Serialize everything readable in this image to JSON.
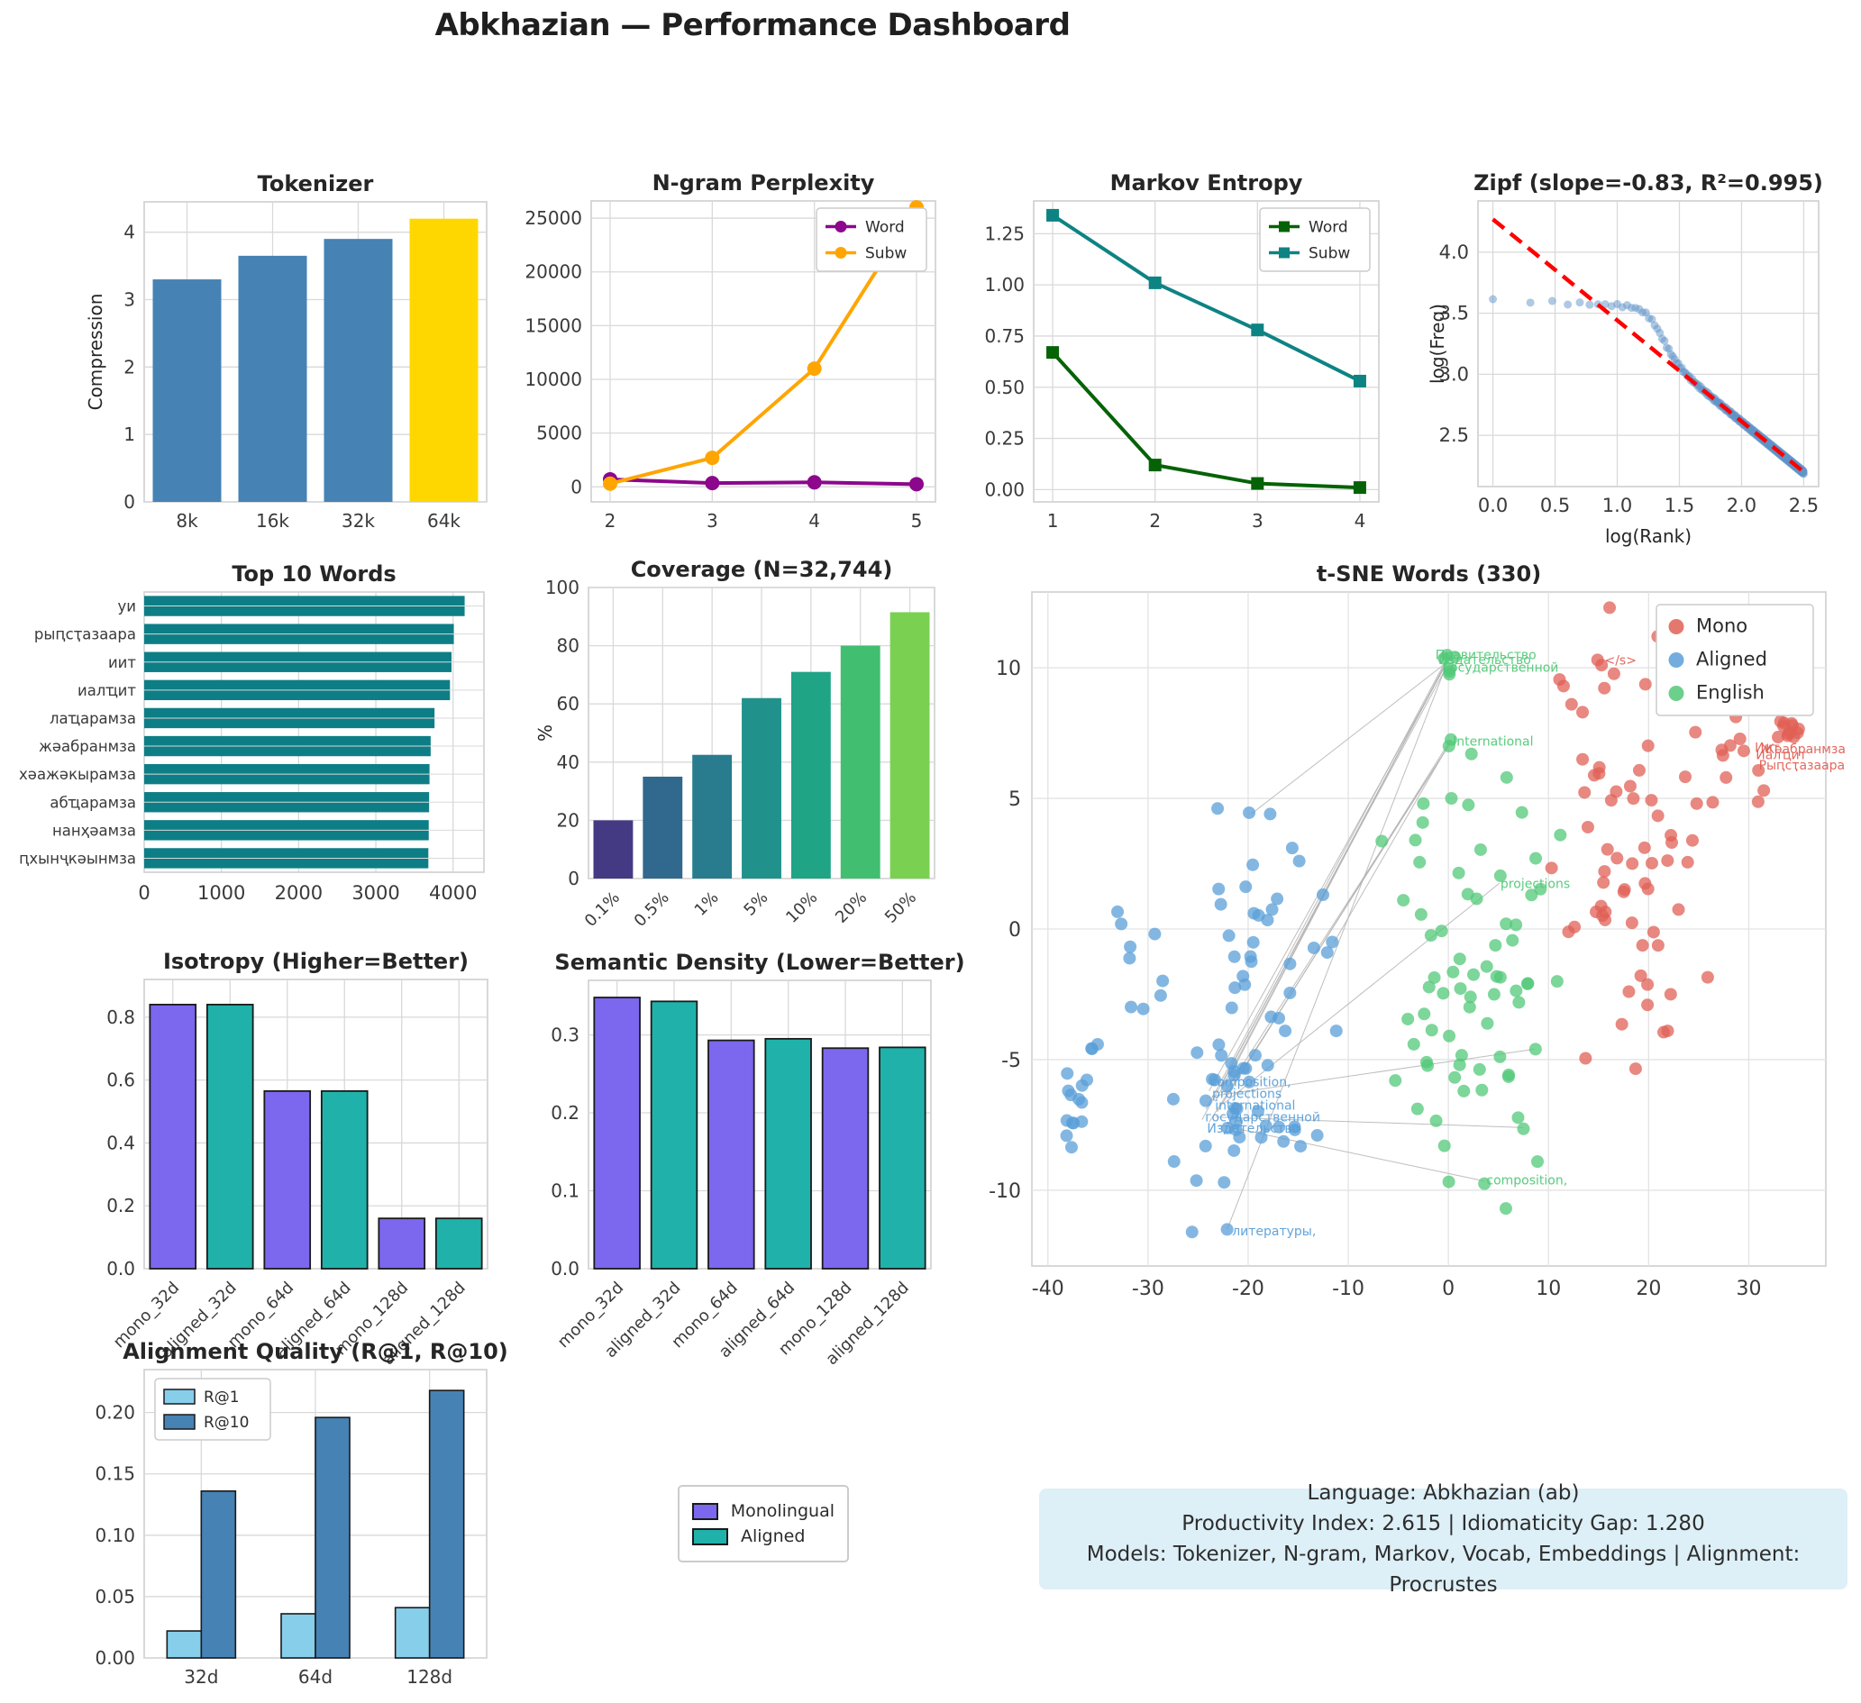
{
  "title": "Abkhazian — Performance Dashboard",
  "chart_data": [
    {
      "id": "tokenizer",
      "type": "bar",
      "title": "Tokenizer",
      "ylabel": "Compression",
      "categories": [
        "8k",
        "16k",
        "32k",
        "64k"
      ],
      "values": [
        3.3,
        3.65,
        3.9,
        4.2
      ],
      "bar_colors": [
        "#4682B4",
        "#4682B4",
        "#4682B4",
        "#FFD700"
      ],
      "ylim": [
        0,
        4.45
      ],
      "yticks": [
        0,
        1,
        2,
        3,
        4
      ],
      "yticklabels": [
        "0",
        "1",
        "2",
        "3",
        "4"
      ]
    },
    {
      "id": "ngram",
      "type": "line",
      "title": "N-gram Perplexity",
      "x": [
        2,
        3,
        4,
        5
      ],
      "xticklabels": [
        "2",
        "3",
        "4",
        "5"
      ],
      "series": [
        {
          "name": "Word",
          "color": "#8C078C",
          "marker": "circle",
          "values": [
            700,
            350,
            420,
            250
          ]
        },
        {
          "name": "Subw",
          "color": "#FFA500",
          "marker": "circle",
          "values": [
            300,
            2700,
            11000,
            26000
          ]
        }
      ],
      "ylim": [
        -1400,
        26600
      ],
      "yticks": [
        0,
        5000,
        10000,
        15000,
        20000,
        25000
      ],
      "yticklabels": [
        "0",
        "5000",
        "10000",
        "15000",
        "20000",
        "25000"
      ],
      "legend_pos": "top-right"
    },
    {
      "id": "markov",
      "type": "line",
      "title": "Markov Entropy",
      "x": [
        1,
        2,
        3,
        4
      ],
      "xticklabels": [
        "1",
        "2",
        "3",
        "4"
      ],
      "series": [
        {
          "name": "Word",
          "color": "#066206",
          "marker": "square",
          "values": [
            0.67,
            0.12,
            0.03,
            0.01
          ]
        },
        {
          "name": "Subw",
          "color": "#0E8383",
          "marker": "square",
          "values": [
            1.34,
            1.01,
            0.78,
            0.53
          ]
        }
      ],
      "ylim": [
        -0.06,
        1.41
      ],
      "yticks": [
        0,
        0.25,
        0.5,
        0.75,
        1.0,
        1.25
      ],
      "yticklabels": [
        "0.00",
        "0.25",
        "0.50",
        "0.75",
        "1.00",
        "1.25"
      ],
      "legend_pos": "top-right"
    },
    {
      "id": "zipf",
      "type": "zipf",
      "title": "Zipf (slope=-0.83, R²=0.995)",
      "xlabel": "log(Rank)",
      "ylabel": "log(Freq)",
      "xlim": [
        -0.12,
        2.62
      ],
      "ylim": [
        2.08,
        4.42
      ],
      "xticks": [
        0,
        0.5,
        1,
        1.5,
        2,
        2.5
      ],
      "xticklabels": [
        "0.0",
        "0.5",
        "1.0",
        "1.5",
        "2.0",
        "2.5"
      ],
      "yticks": [
        2.5,
        3.0,
        3.5,
        4.0
      ],
      "yticklabels": [
        "2.5",
        "3.0",
        "3.5",
        "4.0"
      ],
      "fit_line": {
        "x1": 0,
        "y1": 4.27,
        "x2": 2.5,
        "y2": 2.2,
        "color": "#FF0000"
      },
      "scatter_color": "#5F94C8",
      "n_points": 316,
      "plateau": 3.61,
      "slope": -0.83,
      "intercept": 4.27
    },
    {
      "id": "top10",
      "type": "hbar",
      "title": "Top 10 Words",
      "categories": [
        "уи",
        "рыԥсҭазаара",
        "иит",
        "иалҵит",
        "лаҵарамза",
        "жәабранмза",
        "хәажәкырамза",
        "абҵарамза",
        "нанҳәамза",
        "ԥхынҷкәынмза"
      ],
      "values": [
        4150,
        4010,
        3980,
        3960,
        3760,
        3710,
        3695,
        3690,
        3685,
        3680
      ],
      "bar_color": "#0D7E86",
      "xlim": [
        0,
        4400
      ],
      "xticks": [
        0,
        1000,
        2000,
        3000,
        4000
      ],
      "xticklabels": [
        "0",
        "1000",
        "2000",
        "3000",
        "4000"
      ]
    },
    {
      "id": "coverage",
      "type": "bar",
      "title": "Coverage (N=32,744)",
      "ylabel": "%",
      "categories": [
        "0.1%",
        "0.5%",
        "1%",
        "5%",
        "10%",
        "20%",
        "50%"
      ],
      "values": [
        20,
        35,
        42.5,
        62,
        71,
        80,
        91.5
      ],
      "bar_colors": [
        "#443983",
        "#31688E",
        "#287C8E",
        "#21918C",
        "#20A486",
        "#42BE71",
        "#7AD151"
      ],
      "ylim": [
        0,
        100
      ],
      "yticks": [
        0,
        20,
        40,
        60,
        80,
        100
      ],
      "yticklabels": [
        "0",
        "20",
        "40",
        "60",
        "80",
        "100"
      ],
      "rotate_xticks": 45
    },
    {
      "id": "tsne",
      "type": "tsne",
      "title": "t-SNE Words (330)",
      "xlim": [
        -41.6,
        37.7
      ],
      "ylim": [
        -12.9,
        12.9
      ],
      "xticks": [
        -40,
        -30,
        -20,
        -10,
        0,
        10,
        20,
        30
      ],
      "xticklabels": [
        "-40",
        "-30",
        "-20",
        "-10",
        "0",
        "10",
        "20",
        "30"
      ],
      "yticks": [
        -10,
        -5,
        0,
        5,
        10
      ],
      "yticklabels": [
        "-10",
        "-5",
        "0",
        "5",
        "10"
      ],
      "groups": {
        "mono": "#E06055",
        "aligned": "#5A9FD8",
        "english": "#52C878"
      },
      "legend": [
        {
          "label": "Mono",
          "group": "mono"
        },
        {
          "label": "Aligned",
          "group": "aligned"
        },
        {
          "label": "English",
          "group": "english"
        }
      ],
      "clusters": [
        {
          "g": "aligned",
          "cx": -37.2,
          "cy": -6.7,
          "sx": 0.8,
          "sy": 0.75,
          "n": 13
        },
        {
          "g": "aligned",
          "cx": -35.3,
          "cy": -4.55,
          "sx": 0.4,
          "sy": 0.15,
          "n": 3
        },
        {
          "g": "aligned",
          "cx": -30.6,
          "cy": -1.6,
          "sx": 1.6,
          "sy": 1.0,
          "n": 9
        },
        {
          "g": "aligned",
          "cx": -19.3,
          "cy": -0.6,
          "sx": 2.9,
          "sy": 2.3,
          "n": 26
        },
        {
          "g": "aligned",
          "cx": -21.8,
          "cy": -6.5,
          "sx": 2.4,
          "sy": 1.1,
          "n": 26
        },
        {
          "g": "aligned",
          "cx": -17.3,
          "cy": -8.0,
          "sx": 2.0,
          "sy": 0.8,
          "n": 7
        },
        {
          "g": "english",
          "cx": -0.35,
          "cy": 10.15,
          "sx": 0.45,
          "sy": 0.22,
          "n": 5
        },
        {
          "g": "english",
          "cx": 1.9,
          "cy": -2.3,
          "sx": 3.2,
          "sy": 3.3,
          "n": 60
        },
        {
          "g": "mono",
          "cx": 17.6,
          "cy": 2.7,
          "sx": 3.2,
          "sy": 3.1,
          "n": 52
        },
        {
          "g": "mono",
          "cx": 28.4,
          "cy": 6.7,
          "sx": 1.5,
          "sy": 1.1,
          "n": 10
        },
        {
          "g": "mono",
          "cx": 33.8,
          "cy": 7.6,
          "sx": 0.85,
          "sy": 0.5,
          "n": 12
        }
      ],
      "extra_points": {
        "aligned": [
          [
            -25.6,
            -11.6
          ],
          [
            -22.1,
            -11.5
          ],
          [
            -22.4,
            -9.7
          ],
          [
            -27.4,
            -8.9
          ],
          [
            -13.1,
            -7.9
          ],
          [
            -11.2,
            -3.9
          ],
          [
            -12.1,
            -0.9
          ],
          [
            -11.6,
            -0.5
          ],
          [
            -16.3,
            -3.9
          ],
          [
            -19.9,
            4.45
          ],
          [
            -17.8,
            4.4
          ],
          [
            -15.6,
            3.1
          ],
          [
            -14.9,
            2.6
          ]
        ],
        "english": [
          [
            0.1,
            9.75
          ],
          [
            0.25,
            7.25
          ],
          [
            0.05,
            7.0
          ],
          [
            2.3,
            6.7
          ],
          [
            -2.5,
            4.8
          ],
          [
            0.3,
            5.0
          ],
          [
            2.0,
            4.75
          ],
          [
            -3.3,
            3.4
          ],
          [
            -4.5,
            1.1
          ],
          [
            8.7,
            -4.6
          ],
          [
            7.5,
            -7.65
          ],
          [
            3.6,
            -9.75
          ],
          [
            7.9,
            -2.1
          ],
          [
            8.3,
            1.3
          ],
          [
            -0.4,
            -8.3
          ],
          [
            -5.3,
            -5.8
          ]
        ],
        "mono": [
          [
            16.1,
            12.3
          ],
          [
            20.9,
            11.2
          ],
          [
            14.9,
            10.3
          ],
          [
            15.3,
            10.1
          ],
          [
            11.1,
            9.55
          ],
          [
            11.5,
            9.3
          ],
          [
            12.3,
            8.6
          ],
          [
            13.4,
            8.3
          ],
          [
            28.4,
            8.7
          ],
          [
            31.5,
            5.3
          ],
          [
            26.4,
            4.85
          ],
          [
            24.8,
            4.8
          ],
          [
            18.7,
            -5.35
          ],
          [
            13.7,
            -4.95
          ],
          [
            21.5,
            -3.95
          ],
          [
            21.9,
            -3.9
          ],
          [
            25.9,
            -1.85
          ],
          [
            22.2,
            -2.5
          ]
        ]
      },
      "links": [
        [
          -23.9,
          -6.2,
          -0.35,
          10.05
        ],
        [
          -23.3,
          -6.6,
          -0.2,
          10.2
        ],
        [
          -24.2,
          -6.9,
          -0.5,
          10.1
        ],
        [
          -22.7,
          -6.0,
          -0.1,
          10.25
        ],
        [
          -24.6,
          -7.3,
          -0.3,
          9.95
        ],
        [
          -21.8,
          -5.6,
          -0.4,
          10.1
        ],
        [
          -23.1,
          -7.0,
          0.15,
          7.2
        ],
        [
          -23.9,
          -7.4,
          0.0,
          7.0
        ],
        [
          -22.4,
          -6.3,
          0.25,
          7.15
        ],
        [
          -22.1,
          -11.5,
          -0.3,
          10.0
        ],
        [
          -19.7,
          4.4,
          -0.35,
          10.15
        ],
        [
          -23.6,
          -6.4,
          8.6,
          -4.6
        ],
        [
          -23.2,
          -7.2,
          7.5,
          -7.6
        ],
        [
          -22.9,
          -7.5,
          3.6,
          -9.65
        ],
        [
          -22.5,
          -6.7,
          5.1,
          1.75
        ],
        [
          -11.4,
          -0.5,
          0.1,
          7.1
        ]
      ],
      "point_labels": [
        {
          "text": "Правительство",
          "x": -1.3,
          "y": 10.5,
          "g": "english"
        },
        {
          "text": "Издательство",
          "x": -1.0,
          "y": 10.32,
          "g": "english"
        },
        {
          "text": "Государственной",
          "x": -0.6,
          "y": 10.02,
          "g": "english"
        },
        {
          "text": "International",
          "x": 0.45,
          "y": 7.2,
          "g": "english"
        },
        {
          "text": "projections",
          "x": 5.2,
          "y": 1.75,
          "g": "english"
        },
        {
          "text": "composition,",
          "x": 3.8,
          "y": -9.6,
          "g": "english"
        },
        {
          "text": "composition,",
          "x": -23.8,
          "y": -5.85,
          "g": "aligned"
        },
        {
          "text": "projections",
          "x": -23.6,
          "y": -6.3,
          "g": "aligned"
        },
        {
          "text": "international",
          "x": -23.3,
          "y": -6.75,
          "g": "aligned"
        },
        {
          "text": "государственной",
          "x": -24.3,
          "y": -7.2,
          "g": "aligned"
        },
        {
          "text": "Издательство",
          "x": -24.1,
          "y": -7.62,
          "g": "aligned"
        },
        {
          "text": "литературы,",
          "x": -21.6,
          "y": -11.55,
          "g": "aligned"
        },
        {
          "text": "</s>",
          "x": 15.6,
          "y": 10.3,
          "g": "mono"
        },
        {
          "text": "Иит",
          "x": 30.6,
          "y": 6.95,
          "g": "mono"
        },
        {
          "text": "Жәабранмза",
          "x": 31.2,
          "y": 6.9,
          "g": "mono"
        },
        {
          "text": "Иалҵит",
          "x": 30.7,
          "y": 6.68,
          "g": "mono"
        },
        {
          "text": "Рыԥсҭазаара",
          "x": 31.0,
          "y": 6.28,
          "g": "mono"
        }
      ]
    },
    {
      "id": "isotropy",
      "type": "bar",
      "title": "Isotropy (Higher=Better)",
      "categories": [
        "mono_32d",
        "aligned_32d",
        "mono_64d",
        "aligned_64d",
        "mono_128d",
        "aligned_128d"
      ],
      "values": [
        0.84,
        0.84,
        0.565,
        0.565,
        0.16,
        0.16
      ],
      "bar_colors": [
        "#7B68EE",
        "#20B2AA",
        "#7B68EE",
        "#20B2AA",
        "#7B68EE",
        "#20B2AA"
      ],
      "bar_edge": "#1a1a1a",
      "ylim": [
        0,
        0.92
      ],
      "yticks": [
        0,
        0.2,
        0.4,
        0.6,
        0.8
      ],
      "yticklabels": [
        "0.0",
        "0.2",
        "0.4",
        "0.6",
        "0.8"
      ],
      "rotate_xticks": 45
    },
    {
      "id": "semdens",
      "type": "bar",
      "title": "Semantic Density (Lower=Better)",
      "categories": [
        "mono_32d",
        "aligned_32d",
        "mono_64d",
        "aligned_64d",
        "mono_128d",
        "aligned_128d"
      ],
      "values": [
        0.348,
        0.343,
        0.293,
        0.295,
        0.283,
        0.284
      ],
      "bar_colors": [
        "#7B68EE",
        "#20B2AA",
        "#7B68EE",
        "#20B2AA",
        "#7B68EE",
        "#20B2AA"
      ],
      "bar_edge": "#1a1a1a",
      "ylim": [
        0,
        0.37
      ],
      "yticks": [
        0,
        0.1,
        0.2,
        0.3
      ],
      "yticklabels": [
        "0.0",
        "0.1",
        "0.2",
        "0.3"
      ],
      "rotate_xticks": 45
    },
    {
      "id": "alignq",
      "type": "groupbar",
      "title": "Alignment Quality (R@1, R@10)",
      "categories": [
        "32d",
        "64d",
        "128d"
      ],
      "series": [
        {
          "name": "R@1",
          "color": "#87CEEB",
          "values": [
            0.022,
            0.036,
            0.041
          ]
        },
        {
          "name": "R@10",
          "color": "#4682B4",
          "values": [
            0.136,
            0.196,
            0.218
          ]
        }
      ],
      "bar_edge": "#1a1a1a",
      "ylim": [
        0,
        0.235
      ],
      "yticks": [
        0,
        0.05,
        0.1,
        0.15,
        0.2
      ],
      "yticklabels": [
        "0.00",
        "0.05",
        "0.10",
        "0.15",
        "0.20"
      ],
      "legend_pos": "top-left"
    }
  ],
  "footer_legend": {
    "items": [
      {
        "label": "Monolingual",
        "color": "#7B68EE"
      },
      {
        "label": "Aligned",
        "color": "#20B2AA"
      }
    ]
  },
  "info_box": {
    "bg": "#DDEFF7",
    "lines": [
      "Language: Abkhazian (ab)",
      "Productivity Index: 2.615  |  Idiomaticity Gap: 1.280",
      "Models: Tokenizer, N-gram, Markov, Vocab, Embeddings  |  Alignment: Procrustes"
    ]
  }
}
